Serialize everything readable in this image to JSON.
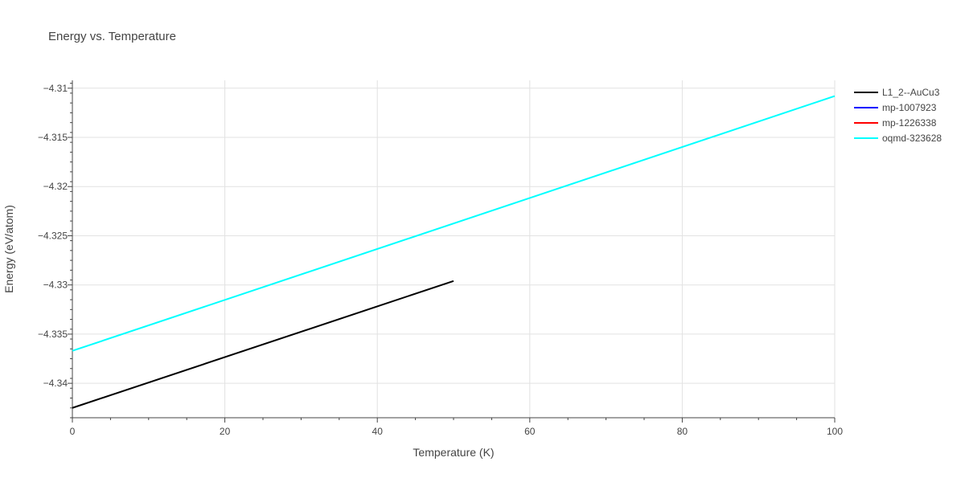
{
  "chart_data": {
    "type": "line",
    "title": "Energy vs. Temperature",
    "xlabel": "Temperature (K)",
    "ylabel": "Energy (eV/atom)",
    "xlim": [
      0,
      100
    ],
    "ylim": [
      -4.3435,
      -4.3092
    ],
    "x_ticks": [
      0,
      20,
      40,
      60,
      80,
      100
    ],
    "x_tick_labels": [
      "0",
      "20",
      "40",
      "60",
      "80",
      "100"
    ],
    "y_ticks": [
      -4.34,
      -4.335,
      -4.33,
      -4.325,
      -4.32,
      -4.315,
      -4.31
    ],
    "y_tick_labels": [
      "−4.34",
      "−4.335",
      "−4.33",
      "−4.325",
      "−4.32",
      "−4.315",
      "−4.31"
    ],
    "grid": true,
    "legend_position": "top-right",
    "series": [
      {
        "name": "L1_2--AuCu3",
        "color": "#000000",
        "x": [
          0,
          50
        ],
        "y": [
          -4.3425,
          -4.3296
        ]
      },
      {
        "name": "mp-1007923",
        "color": "#0000ff",
        "x": [],
        "y": []
      },
      {
        "name": "mp-1226338",
        "color": "#ff0000",
        "x": [],
        "y": []
      },
      {
        "name": "oqmd-323628",
        "color": "#00ffff",
        "x": [
          0,
          100
        ],
        "y": [
          -4.3367,
          -4.3108
        ]
      }
    ]
  }
}
